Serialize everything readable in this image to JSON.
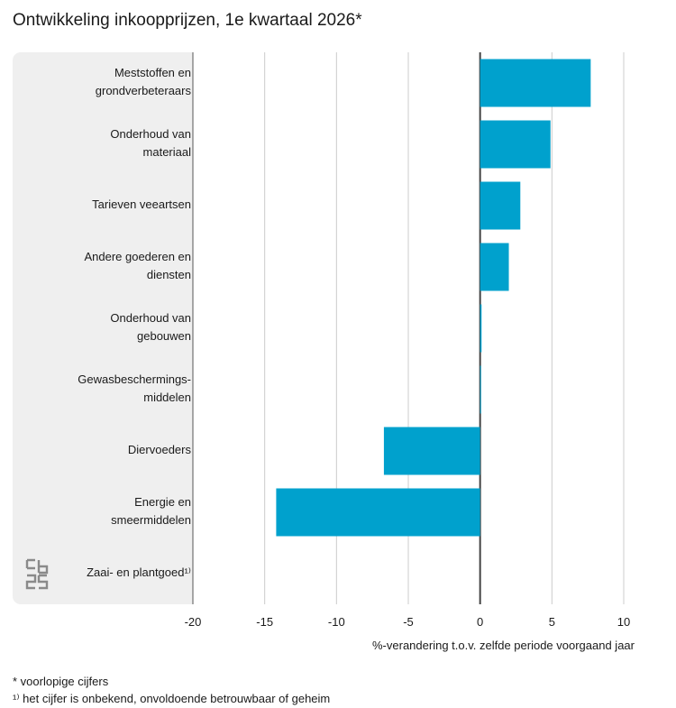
{
  "title": "Ontwikkeling inkoopprijzen, 1e kwartaal 2026*",
  "chart_data": {
    "type": "bar",
    "orientation": "horizontal",
    "categories": [
      "Meststoffen en\ngrondverbeteraars",
      "Onderhoud van\nmateriaal",
      "Tarieven veeartsen",
      "Andere goederen en\ndiensten",
      "Onderhoud van\ngebouwen",
      "Gewasbeschermings-\nmiddelen",
      "Diervoeders",
      "Energie en\nsmeermiddelen",
      "Zaai- en plantgoed¹⁾"
    ],
    "values": [
      7.7,
      4.9,
      2.8,
      2.0,
      0.1,
      0.0,
      -6.7,
      -14.2,
      null
    ],
    "xlim": [
      -20,
      10
    ],
    "ticks": [
      -20,
      -15,
      -10,
      -5,
      0,
      5,
      10
    ],
    "xlabel": "%-verandering t.o.v. zelfde periode voorgaand jaar",
    "grid": true,
    "bar_color": "#00a1cd"
  },
  "footnotes": [
    "* voorlopige cijfers",
    "¹⁾ het cijfer is onbekend, onvoldoende betrouwbaar of geheim"
  ],
  "logo": "cbs"
}
